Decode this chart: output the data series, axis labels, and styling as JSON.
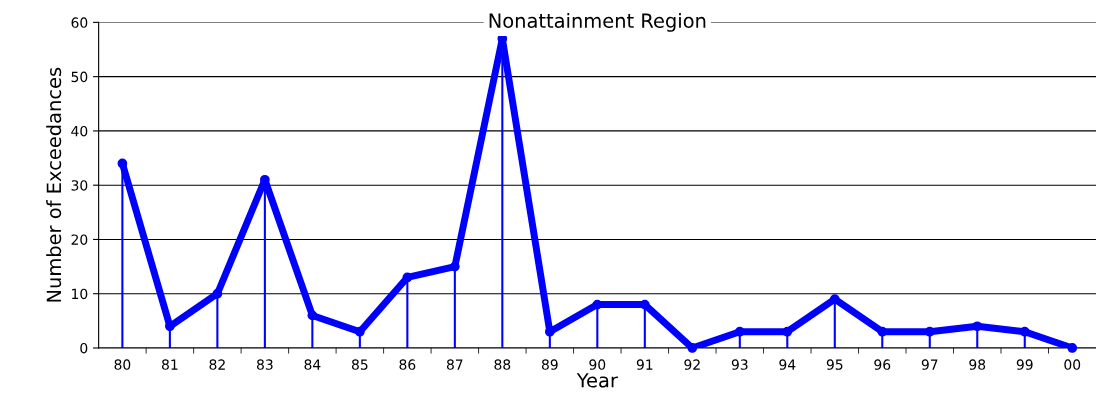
{
  "chart_data": {
    "type": "line",
    "title": "Nonattainment Region",
    "xlabel": "Year",
    "ylabel": "Number of Exceedances",
    "categories": [
      "80",
      "81",
      "82",
      "83",
      "84",
      "85",
      "86",
      "87",
      "88",
      "89",
      "90",
      "91",
      "92",
      "93",
      "94",
      "95",
      "96",
      "97",
      "98",
      "99",
      "00"
    ],
    "series": [
      {
        "type": "lollipop",
        "color": "#0000ff",
        "values": [
          34,
          4,
          10,
          31,
          6,
          3,
          13,
          15,
          57,
          3,
          8,
          8,
          0,
          3,
          3,
          9,
          3,
          3,
          4,
          3,
          0
        ]
      },
      {
        "color": "#0000ff",
        "values": [
          34,
          4,
          10,
          31,
          6,
          3,
          13,
          15,
          57,
          3,
          8,
          8,
          0,
          3,
          3,
          9,
          3,
          3,
          4,
          3,
          0
        ]
      }
    ],
    "ylim": [
      0,
      60
    ],
    "yticks": [
      0,
      10,
      20,
      30,
      40,
      50,
      60
    ],
    "grid": "y",
    "line_style": "solid"
  }
}
